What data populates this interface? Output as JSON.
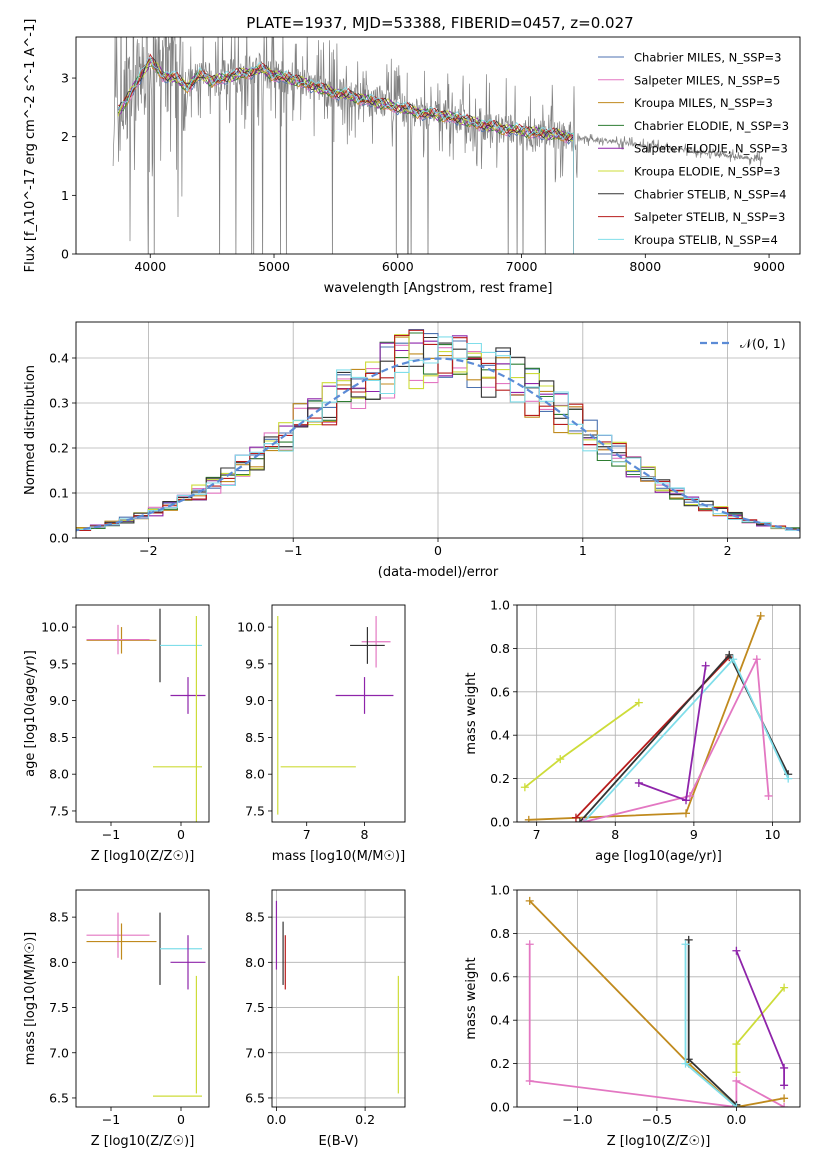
{
  "figure_title": "PLATE=1937, MJD=53388, FIBERID=0457, z=0.027",
  "colors": {
    "chabrier_miles": "#4c72b0",
    "salpeter_miles": "#e377c2",
    "kroupa_miles": "#c08a1e",
    "chabrier_elodie": "#2e7d32",
    "salpeter_elodie": "#8e24aa",
    "kroupa_elodie": "#cddc39",
    "chabrier_stelib": "#333333",
    "salpeter_stelib": "#b71c1c",
    "kroupa_stelib": "#80deea",
    "observed": "#808080",
    "normal": "#5b8bd6",
    "grid": "#b0b0b0"
  },
  "chart_data": [
    {
      "id": "spectrum",
      "type": "line",
      "title": "",
      "xlabel": "wavelength [Angstrom, rest frame]",
      "ylabel": "Flux [f_λ10^-17 erg cm^-2 s^-1 A^-1]",
      "xlim": [
        3400,
        9250
      ],
      "ylim": [
        0,
        3.7
      ],
      "xticks": [
        "4000",
        "5000",
        "6000",
        "7000",
        "8000",
        "9000"
      ],
      "yticks": [
        "0",
        "1",
        "2",
        "3"
      ],
      "grid": false,
      "legend_position": "top-right",
      "legend": [
        {
          "label": "Chabrier MILES, N_SSP=3",
          "color_key": "chabrier_miles"
        },
        {
          "label": "Salpeter MILES, N_SSP=5",
          "color_key": "salpeter_miles"
        },
        {
          "label": "Kroupa MILES, N_SSP=3",
          "color_key": "kroupa_miles"
        },
        {
          "label": "Chabrier ELODIE, N_SSP=3",
          "color_key": "chabrier_elodie"
        },
        {
          "label": "Salpeter ELODIE, N_SSP=3",
          "color_key": "salpeter_elodie"
        },
        {
          "label": "Kroupa ELODIE, N_SSP=3",
          "color_key": "kroupa_elodie"
        },
        {
          "label": "Chabrier STELIB, N_SSP=4",
          "color_key": "chabrier_stelib"
        },
        {
          "label": "Salpeter STELIB, N_SSP=3",
          "color_key": "salpeter_stelib"
        },
        {
          "label": "Kroupa STELIB, N_SSP=4",
          "color_key": "kroupa_stelib"
        }
      ],
      "continuum": {
        "x": [
          3700,
          3800,
          3900,
          4000,
          4100,
          4200,
          4300,
          4400,
          4500,
          4600,
          4700,
          4800,
          4900,
          5000,
          5200,
          5400,
          5600,
          5800,
          6000,
          6200,
          6400,
          6600,
          6800,
          7000,
          7200,
          7400,
          7600,
          7800,
          8000,
          8200,
          8400,
          8600,
          8800,
          9000
        ],
        "y": [
          2.3,
          2.6,
          2.95,
          3.3,
          3.05,
          3.0,
          2.85,
          3.05,
          2.95,
          3.0,
          3.05,
          3.1,
          3.15,
          3.05,
          2.95,
          2.8,
          2.7,
          2.6,
          2.5,
          2.4,
          2.35,
          2.25,
          2.15,
          2.1,
          2.05,
          2.0,
          1.95,
          1.9,
          1.85,
          1.8,
          1.75,
          1.7,
          1.65,
          1.6
        ]
      },
      "models_end": 7420
    },
    {
      "id": "residuals",
      "type": "line",
      "title": "",
      "xlabel": "(data-model)/error",
      "ylabel": "Normed distribution",
      "xlim": [
        -2.5,
        2.5
      ],
      "ylim": [
        0,
        0.48
      ],
      "xticks": [
        "−2",
        "−1",
        "0",
        "1",
        "2"
      ],
      "yticks": [
        "0.0",
        "0.1",
        "0.2",
        "0.3",
        "0.4"
      ],
      "grid": true,
      "legend_position": "top-right",
      "legend": [
        {
          "label": "𝒩(0, 1)",
          "color_key": "normal"
        }
      ],
      "bin_width": 0.1,
      "normal": {
        "mu": 0,
        "sigma": 1
      }
    },
    {
      "id": "age_vs_Z",
      "type": "scatter",
      "xlabel": "Z [log10(Z/Z☉)]",
      "ylabel": "age  [log10(age/yr)]",
      "xlim": [
        -1.5,
        0.4
      ],
      "ylim": [
        7.35,
        10.3
      ],
      "xticks": [
        "−1",
        "0"
      ],
      "yticks": [
        "7.5",
        "8.0",
        "8.5",
        "9.0",
        "9.5",
        "10.0"
      ],
      "grid": false,
      "crosses": [
        {
          "x": -0.85,
          "y": 9.82,
          "xerr": 0.5,
          "yerr": 0.18,
          "color_key": "kroupa_miles"
        },
        {
          "x": -0.9,
          "y": 9.83,
          "xerr": 0.45,
          "yerr": 0.2,
          "color_key": "salpeter_miles"
        },
        {
          "x": -0.3,
          "y": 9.75,
          "xerr": 0,
          "yerr": 0.5,
          "color_key": "chabrier_stelib"
        },
        {
          "x": 0.0,
          "y": 9.75,
          "xerr": 0.3,
          "yerr": 0,
          "color_key": "kroupa_stelib"
        },
        {
          "x": 0.1,
          "y": 9.07,
          "xerr": 0.25,
          "yerr": 0.25,
          "color_key": "salpeter_elodie"
        },
        {
          "x": 0.22,
          "y": 8.75,
          "xerr": 0,
          "yerr": 1.4,
          "color_key": "kroupa_elodie"
        },
        {
          "x": -0.05,
          "y": 8.1,
          "xerr": 0.35,
          "yerr": 0,
          "color_key": "kroupa_elodie"
        }
      ]
    },
    {
      "id": "age_vs_mass",
      "type": "scatter",
      "xlabel": "mass [log10(M/M☉)]",
      "ylabel": "",
      "xlim": [
        6.4,
        8.7
      ],
      "ylim": [
        7.35,
        10.3
      ],
      "xticks": [
        "7",
        "8"
      ],
      "yticks": [
        "7.5",
        "8.0",
        "8.5",
        "9.0",
        "9.5",
        "10.0"
      ],
      "grid": false,
      "crosses": [
        {
          "x": 8.2,
          "y": 9.8,
          "xerr": 0.25,
          "yerr": 0.35,
          "color_key": "salpeter_miles"
        },
        {
          "x": 8.05,
          "y": 9.75,
          "xerr": 0.3,
          "yerr": 0.25,
          "color_key": "chabrier_stelib"
        },
        {
          "x": 8.0,
          "y": 9.07,
          "xerr": 0.5,
          "yerr": 0.25,
          "color_key": "salpeter_elodie"
        },
        {
          "x": 6.5,
          "y": 8.8,
          "xerr": 0,
          "yerr": 1.35,
          "color_key": "kroupa_elodie"
        },
        {
          "x": 7.2,
          "y": 8.1,
          "xerr": 0.65,
          "yerr": 0,
          "color_key": "kroupa_elodie"
        }
      ]
    },
    {
      "id": "weight_vs_age",
      "type": "line",
      "xlabel": "age  [log10(age/yr)]",
      "ylabel": "mass weight",
      "xlim": [
        6.75,
        10.35
      ],
      "ylim": [
        0,
        1
      ],
      "xticks": [
        "7",
        "8",
        "9",
        "10"
      ],
      "yticks": [
        "0.0",
        "0.2",
        "0.4",
        "0.6",
        "0.8",
        "1.0"
      ],
      "grid": true,
      "series": [
        {
          "color_key": "kroupa_elodie",
          "x": [
            6.85,
            7.3,
            8.3
          ],
          "y": [
            0.16,
            0.29,
            0.55
          ]
        },
        {
          "color_key": "kroupa_miles",
          "x": [
            6.9,
            8.9,
            9.85
          ],
          "y": [
            0.01,
            0.04,
            0.95
          ]
        },
        {
          "color_key": "salpeter_stelib",
          "x": [
            7.5,
            9.45
          ],
          "y": [
            0.02,
            0.76
          ]
        },
        {
          "color_key": "chabrier_stelib",
          "x": [
            7.55,
            9.45,
            10.2
          ],
          "y": [
            0.0,
            0.77,
            0.22
          ]
        },
        {
          "color_key": "kroupa_stelib",
          "x": [
            7.6,
            9.5,
            10.2
          ],
          "y": [
            0.0,
            0.75,
            0.2
          ]
        },
        {
          "color_key": "salpeter_miles",
          "x": [
            7.6,
            8.95,
            9.8,
            9.95
          ],
          "y": [
            0.0,
            0.12,
            0.75,
            0.12
          ]
        },
        {
          "color_key": "salpeter_elodie",
          "x": [
            8.3,
            8.9,
            9.15
          ],
          "y": [
            0.18,
            0.1,
            0.72
          ]
        }
      ]
    },
    {
      "id": "mass_vs_Z",
      "type": "scatter",
      "xlabel": "Z [log10(Z/Z☉)]",
      "ylabel": "mass [log10(M/M☉)]",
      "xlim": [
        -1.5,
        0.4
      ],
      "ylim": [
        6.4,
        8.8
      ],
      "xticks": [
        "−1",
        "0"
      ],
      "yticks": [
        "6.5",
        "7.0",
        "7.5",
        "8.0",
        "8.5"
      ],
      "grid": false,
      "crosses": [
        {
          "x": -0.9,
          "y": 8.3,
          "xerr": 0.45,
          "yerr": 0.25,
          "color_key": "salpeter_miles"
        },
        {
          "x": -0.85,
          "y": 8.23,
          "xerr": 0.5,
          "yerr": 0.2,
          "color_key": "kroupa_miles"
        },
        {
          "x": -0.3,
          "y": 8.15,
          "xerr": 0,
          "yerr": 0.4,
          "color_key": "chabrier_stelib"
        },
        {
          "x": 0.0,
          "y": 8.15,
          "xerr": 0.3,
          "yerr": 0,
          "color_key": "kroupa_stelib"
        },
        {
          "x": 0.1,
          "y": 8.0,
          "xerr": 0.25,
          "yerr": 0.3,
          "color_key": "salpeter_elodie"
        },
        {
          "x": 0.22,
          "y": 7.2,
          "xerr": 0,
          "yerr": 0.65,
          "color_key": "kroupa_elodie"
        },
        {
          "x": -0.05,
          "y": 6.52,
          "xerr": 0.35,
          "yerr": 0,
          "color_key": "kroupa_elodie"
        }
      ]
    },
    {
      "id": "mass_vs_ebv",
      "type": "scatter",
      "xlabel": "E(B-V)",
      "ylabel": "",
      "xlim": [
        -0.01,
        0.29
      ],
      "ylim": [
        6.4,
        8.8
      ],
      "xticks": [
        "0.0",
        "0.2"
      ],
      "yticks": [
        "6.5",
        "7.0",
        "7.5",
        "8.0",
        "8.5"
      ],
      "grid": true,
      "crosses": [
        {
          "x": 0.0,
          "y": 8.3,
          "xerr": 0,
          "yerr": 0.38,
          "color_key": "salpeter_elodie"
        },
        {
          "x": 0.015,
          "y": 8.1,
          "xerr": 0,
          "yerr": 0.35,
          "color_key": "chabrier_stelib"
        },
        {
          "x": 0.02,
          "y": 8.0,
          "xerr": 0,
          "yerr": 0.3,
          "color_key": "salpeter_stelib"
        },
        {
          "x": 0.275,
          "y": 7.2,
          "xerr": 0,
          "yerr": 0.65,
          "color_key": "kroupa_elodie"
        }
      ]
    },
    {
      "id": "weight_vs_Z",
      "type": "line",
      "xlabel": "Z [log10(Z/Z☉)]",
      "ylabel": "mass weight",
      "xlim": [
        -1.38,
        0.4
      ],
      "ylim": [
        0,
        1
      ],
      "xticks": [
        "−1.0",
        "−0.5",
        "0.0"
      ],
      "yticks": [
        "0.0",
        "0.2",
        "0.4",
        "0.6",
        "0.8",
        "1.0"
      ],
      "grid": true,
      "series": [
        {
          "color_key": "salpeter_miles",
          "x": [
            -1.3,
            -1.3,
            0.0,
            0.0,
            0.3
          ],
          "y": [
            0.75,
            0.12,
            0.0,
            0.12,
            0.0
          ]
        },
        {
          "color_key": "kroupa_miles",
          "x": [
            -1.3,
            -0.3,
            0.0,
            0.3
          ],
          "y": [
            0.95,
            0.2,
            0.0,
            0.04
          ]
        },
        {
          "color_key": "chabrier_stelib",
          "x": [
            -0.3,
            -0.3,
            0.0
          ],
          "y": [
            0.77,
            0.22,
            0.01
          ]
        },
        {
          "color_key": "kroupa_stelib",
          "x": [
            -0.32,
            -0.32,
            0.0
          ],
          "y": [
            0.75,
            0.2,
            0.0
          ]
        },
        {
          "color_key": "kroupa_elodie",
          "x": [
            0.0,
            0.0,
            0.3
          ],
          "y": [
            0.16,
            0.29,
            0.55
          ]
        },
        {
          "color_key": "salpeter_elodie",
          "x": [
            0.0,
            0.3,
            0.3
          ],
          "y": [
            0.72,
            0.18,
            0.1
          ]
        }
      ]
    }
  ]
}
